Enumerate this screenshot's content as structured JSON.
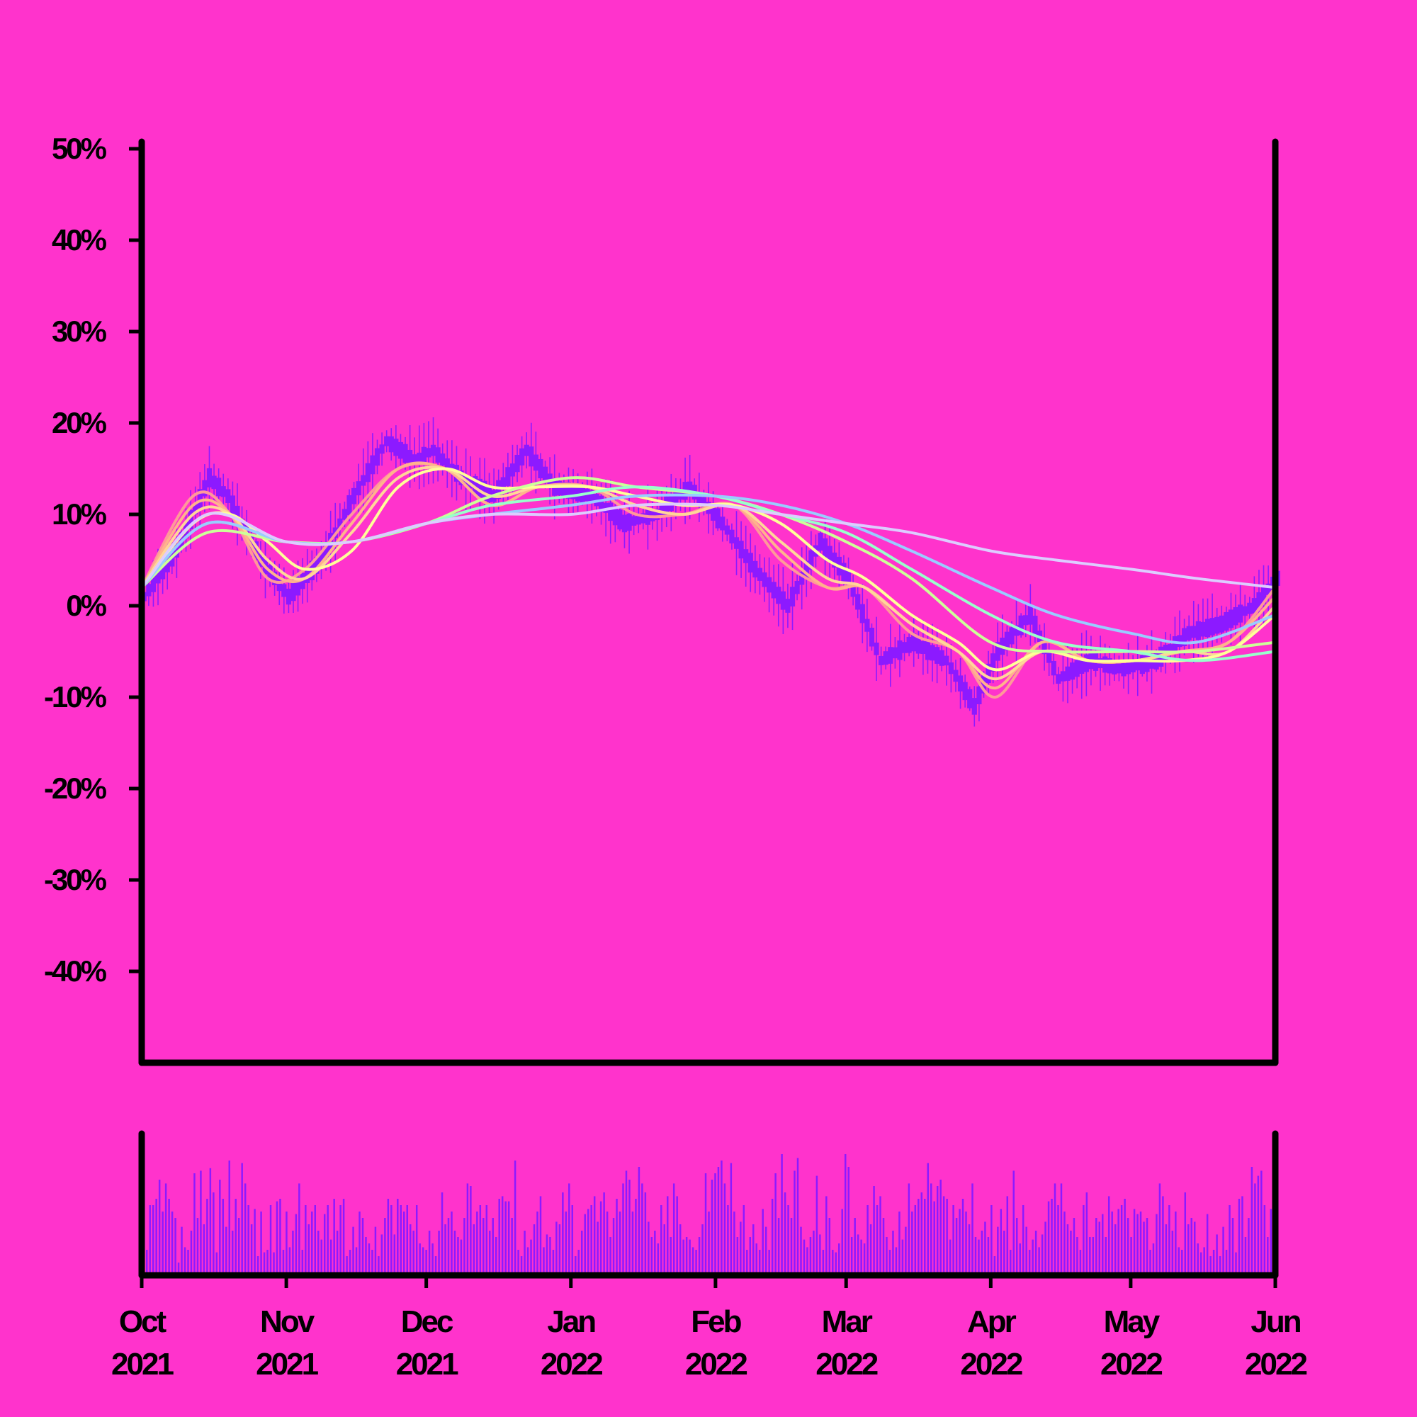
{
  "colors": {
    "background": "#ff33cc",
    "axis": "#000000",
    "candle": "#8c1aff",
    "volume": "#8c1aff"
  },
  "chart_data": [
    {
      "type": "line",
      "title": "",
      "xlabel": "",
      "ylabel": "",
      "x_range": [
        "2021-10-01",
        "2022-06-01"
      ],
      "ylim": [
        -50,
        50
      ],
      "y_ticks": [
        "50%",
        "40%",
        "30%",
        "20%",
        "10%",
        "0%",
        "-10%",
        "-20%",
        "-30%",
        "-40%"
      ],
      "x_ticks": [
        {
          "month": "Oct",
          "year": "2021",
          "date": "2021-10-01"
        },
        {
          "month": "Nov",
          "year": "2021",
          "date": "2021-11-01"
        },
        {
          "month": "Dec",
          "year": "2021",
          "date": "2021-12-01"
        },
        {
          "month": "Jan",
          "year": "2022",
          "date": "2022-01-01"
        },
        {
          "month": "Feb",
          "year": "2022",
          "date": "2022-02-01"
        },
        {
          "month": "Mar",
          "year": "2022",
          "date": "2022-03-01"
        },
        {
          "month": "Apr",
          "year": "2022",
          "date": "2022-04-01"
        },
        {
          "month": "May",
          "year": "2022",
          "date": "2022-05-01"
        },
        {
          "month": "Jun",
          "year": "2022",
          "date": "2022-06-01"
        }
      ],
      "grid": false,
      "legend": "none",
      "price_path": {
        "dates": [
          "2021-10-01",
          "2021-10-08",
          "2021-10-15",
          "2021-10-19",
          "2021-10-26",
          "2021-11-01",
          "2021-11-08",
          "2021-11-15",
          "2021-11-22",
          "2021-11-28",
          "2021-12-02",
          "2021-12-08",
          "2021-12-15",
          "2021-12-22",
          "2021-12-28",
          "2022-01-05",
          "2022-01-12",
          "2022-01-19",
          "2022-01-26",
          "2022-02-02",
          "2022-02-09",
          "2022-02-16",
          "2022-02-23",
          "2022-03-01",
          "2022-03-08",
          "2022-03-15",
          "2022-03-22",
          "2022-03-28",
          "2022-04-02",
          "2022-04-09",
          "2022-04-15",
          "2022-04-22",
          "2022-04-29",
          "2022-05-06",
          "2022-05-13",
          "2022-05-20",
          "2022-05-27",
          "2022-06-01"
        ],
        "values": [
          1,
          6,
          14,
          12,
          5,
          1,
          5,
          12,
          18,
          16,
          17,
          14,
          12,
          17,
          13,
          12,
          9,
          10,
          13,
          9,
          4,
          0,
          7,
          3,
          -6,
          -4,
          -6,
          -11,
          -5,
          -1,
          -8,
          -6,
          -7,
          -6,
          -3,
          -2,
          0,
          3
        ]
      },
      "series": [
        {
          "name": "",
          "color": "#ff9999",
          "x": [
            "2021-10-01",
            "2021-10-12",
            "2021-10-20",
            "2021-10-28",
            "2021-11-05",
            "2021-11-15",
            "2021-11-25",
            "2021-12-05",
            "2021-12-15",
            "2021-12-25",
            "2022-01-05",
            "2022-01-15",
            "2022-01-25",
            "2022-02-05",
            "2022-02-15",
            "2022-02-25",
            "2022-03-05",
            "2022-03-15",
            "2022-03-25",
            "2022-04-02",
            "2022-04-12",
            "2022-04-22",
            "2022-05-02",
            "2022-05-12",
            "2022-05-22",
            "2022-06-01"
          ],
          "y": [
            2,
            12,
            10,
            3,
            4,
            10,
            15,
            15,
            11,
            13,
            13,
            10,
            10,
            11,
            5,
            2,
            2,
            -3,
            -5,
            -10,
            -4,
            -6,
            -6,
            -5,
            -4,
            2
          ]
        },
        {
          "name": "",
          "color": "#ffb38c",
          "x": [
            "2021-10-01",
            "2021-10-12",
            "2021-10-20",
            "2021-10-28",
            "2021-11-05",
            "2021-11-15",
            "2021-11-25",
            "2021-12-05",
            "2021-12-15",
            "2021-12-25",
            "2022-01-05",
            "2022-01-15",
            "2022-01-25",
            "2022-02-05",
            "2022-02-15",
            "2022-02-25",
            "2022-03-05",
            "2022-03-15",
            "2022-03-25",
            "2022-04-02",
            "2022-04-12",
            "2022-04-22",
            "2022-05-02",
            "2022-05-12",
            "2022-05-22",
            "2022-06-01"
          ],
          "y": [
            2,
            11,
            10,
            4,
            3,
            9,
            15,
            15,
            11,
            13,
            13,
            11,
            10,
            11,
            6,
            2,
            2,
            -2,
            -5,
            -9,
            -4,
            -6,
            -6,
            -5,
            -4,
            1
          ]
        },
        {
          "name": "",
          "color": "#ffd699",
          "x": [
            "2021-10-01",
            "2021-10-12",
            "2021-10-20",
            "2021-10-28",
            "2021-11-05",
            "2021-11-15",
            "2021-11-25",
            "2021-12-05",
            "2021-12-15",
            "2021-12-25",
            "2022-01-05",
            "2022-01-15",
            "2022-01-25",
            "2022-02-05",
            "2022-02-15",
            "2022-02-25",
            "2022-03-05",
            "2022-03-15",
            "2022-03-25",
            "2022-04-02",
            "2022-04-12",
            "2022-04-22",
            "2022-05-02",
            "2022-05-12",
            "2022-05-22",
            "2022-06-01"
          ],
          "y": [
            2,
            10,
            10,
            5,
            3,
            8,
            14,
            15,
            12,
            13,
            13,
            11,
            10,
            11,
            7,
            3,
            2,
            -2,
            -5,
            -8,
            -5,
            -6,
            -6,
            -5,
            -5,
            0
          ]
        },
        {
          "name": "",
          "color": "#ffff99",
          "x": [
            "2021-10-01",
            "2021-10-12",
            "2021-10-20",
            "2021-10-28",
            "2021-11-05",
            "2021-11-15",
            "2021-11-25",
            "2021-12-05",
            "2021-12-15",
            "2021-12-25",
            "2022-01-05",
            "2022-01-15",
            "2022-01-25",
            "2022-02-05",
            "2022-02-15",
            "2022-02-25",
            "2022-03-05",
            "2022-03-15",
            "2022-03-25",
            "2022-04-02",
            "2022-04-12",
            "2022-04-22",
            "2022-05-02",
            "2022-05-12",
            "2022-05-22",
            "2022-06-01"
          ],
          "y": [
            2,
            9,
            10,
            7,
            4,
            6,
            13,
            15,
            13,
            13,
            13,
            12,
            11,
            11,
            9,
            5,
            3,
            -1,
            -4,
            -7,
            -5,
            -6,
            -6,
            -6,
            -5,
            -1
          ]
        },
        {
          "name": "",
          "color": "#ccff99",
          "x": [
            "2021-10-01",
            "2021-10-15",
            "2021-11-01",
            "2021-11-15",
            "2021-12-01",
            "2021-12-15",
            "2022-01-01",
            "2022-01-15",
            "2022-02-01",
            "2022-02-15",
            "2022-03-01",
            "2022-03-15",
            "2022-04-01",
            "2022-04-15",
            "2022-05-01",
            "2022-05-15",
            "2022-06-01"
          ],
          "y": [
            2,
            8,
            7,
            7,
            9,
            12,
            14,
            13,
            12,
            10,
            7,
            3,
            -4,
            -5,
            -5,
            -5,
            -4
          ]
        },
        {
          "name": "",
          "color": "#99ffcc",
          "x": [
            "2021-10-01",
            "2021-10-15",
            "2021-11-01",
            "2021-11-15",
            "2021-12-01",
            "2021-12-15",
            "2022-01-01",
            "2022-01-15",
            "2022-02-01",
            "2022-02-15",
            "2022-03-01",
            "2022-03-15",
            "2022-04-01",
            "2022-04-15",
            "2022-05-01",
            "2022-05-15",
            "2022-06-01"
          ],
          "y": [
            2,
            9,
            7,
            7,
            9,
            11,
            12,
            13,
            12,
            10,
            8,
            4,
            -1,
            -4,
            -5,
            -6,
            -5
          ]
        },
        {
          "name": "",
          "color": "#99ccff",
          "x": [
            "2021-10-01",
            "2021-10-15",
            "2021-11-01",
            "2021-11-15",
            "2021-12-01",
            "2021-12-15",
            "2022-01-01",
            "2022-01-15",
            "2022-02-01",
            "2022-02-15",
            "2022-03-01",
            "2022-03-15",
            "2022-04-01",
            "2022-04-15",
            "2022-05-01",
            "2022-05-15",
            "2022-06-01"
          ],
          "y": [
            2,
            9,
            7,
            7,
            9,
            10,
            11,
            12,
            12,
            11,
            9,
            6,
            2,
            -1,
            -3,
            -4,
            -1
          ]
        },
        {
          "name": "",
          "color": "#ddccff",
          "x": [
            "2021-10-01",
            "2021-10-15",
            "2021-11-01",
            "2021-11-15",
            "2021-12-01",
            "2021-12-15",
            "2022-01-01",
            "2022-01-15",
            "2022-02-01",
            "2022-02-15",
            "2022-03-01",
            "2022-03-15",
            "2022-04-01",
            "2022-04-15",
            "2022-05-01",
            "2022-05-15",
            "2022-06-01"
          ],
          "y": [
            2,
            10,
            7,
            7,
            9,
            10,
            10,
            11,
            11,
            10,
            9,
            8,
            6,
            5,
            4,
            3,
            2
          ]
        }
      ]
    },
    {
      "type": "bar",
      "title": "",
      "xlabel": "",
      "ylabel": "",
      "x_range": [
        "2021-10-01",
        "2022-06-01"
      ],
      "note_values": "relative daily volume, 0-1 scale",
      "values": [
        0.2,
        0.55,
        0.55,
        0.6,
        0.75,
        0.5,
        0.72,
        0.6,
        0.5,
        0.45,
        0.1,
        0.38,
        0.22,
        0.2,
        0.35,
        0.8,
        0.45,
        0.82,
        0.4,
        0.6,
        0.84,
        0.65,
        0.18,
        0.75,
        0.6,
        0.38,
        0.9,
        0.35,
        0.6,
        0.45,
        0.88,
        0.72,
        0.55,
        0.4,
        0.52,
        0.15,
        0.5,
        0.18,
        0.2,
        0.55,
        0.18,
        0.58,
        0.6,
        0.2,
        0.5,
        0.22,
        0.35,
        0.48,
        0.72,
        0.2,
        0.55,
        0.4,
        0.5,
        0.55,
        0.35,
        0.28,
        0.48,
        0.55,
        0.28,
        0.6,
        0.35,
        0.55,
        0.6,
        0.15,
        0.2,
        0.38,
        0.22,
        0.5,
        0.45,
        0.3,
        0.25,
        0.2,
        0.38,
        0.15,
        0.32,
        0.45,
        0.6,
        0.55,
        0.32,
        0.6,
        0.55,
        0.5,
        0.55,
        0.4,
        0.35,
        0.55,
        0.25,
        0.22,
        0.2,
        0.35,
        0.25,
        0.15,
        0.35,
        0.65,
        0.4,
        0.45,
        0.5,
        0.35,
        0.3,
        0.28,
        0.45,
        0.72,
        0.7,
        0.4,
        0.5,
        0.55,
        0.45,
        0.55,
        0.35,
        0.45,
        0.3,
        0.6,
        0.62,
        0.58,
        0.58,
        0.45,
        0.9,
        0.2,
        0.15,
        0.35,
        0.22,
        0.28,
        0.4,
        0.5,
        0.62,
        0.22,
        0.32,
        0.3,
        0.2,
        0.42,
        0.4,
        0.65,
        0.5,
        0.72,
        0.55,
        0.15,
        0.2,
        0.35,
        0.48,
        0.52,
        0.55,
        0.62,
        0.42,
        0.58,
        0.65,
        0.5,
        0.3,
        0.45,
        0.6,
        0.5,
        0.72,
        0.82,
        0.75,
        0.5,
        0.6,
        0.85,
        0.72,
        0.65,
        0.42,
        0.3,
        0.35,
        0.25,
        0.55,
        0.4,
        0.62,
        0.3,
        0.72,
        0.62,
        0.4,
        0.28,
        0.3,
        0.28,
        0.22,
        0.2,
        0.3,
        0.4,
        0.8,
        0.5,
        0.75,
        0.8,
        0.85,
        0.9,
        0.72,
        0.55,
        0.88,
        0.5,
        0.3,
        0.42,
        0.55,
        0.2,
        0.3,
        0.4,
        0.25,
        0.2,
        0.52,
        0.38,
        0.2,
        0.6,
        0.8,
        0.45,
        0.95,
        0.65,
        0.55,
        0.45,
        0.82,
        0.92,
        0.38,
        0.28,
        0.22,
        0.3,
        0.35,
        0.78,
        0.32,
        0.2,
        0.62,
        0.45,
        0.2,
        0.18,
        0.25,
        0.52,
        0.95,
        0.85,
        0.3,
        0.45,
        0.32,
        0.28,
        0.25,
        0.55,
        0.4,
        0.7,
        0.55,
        0.62,
        0.45,
        0.3,
        0.2,
        0.35,
        0.22,
        0.5,
        0.28,
        0.38,
        0.72,
        0.5,
        0.55,
        0.6,
        0.65,
        0.6,
        0.88,
        0.72,
        0.58,
        0.7,
        0.75,
        0.62,
        0.6,
        0.28,
        0.55,
        0.45,
        0.52,
        0.6,
        0.5,
        0.4,
        0.72,
        0.3,
        0.28,
        0.35,
        0.42,
        0.3,
        0.55,
        0.15,
        0.38,
        0.52,
        0.35,
        0.62,
        0.2,
        0.82,
        0.45,
        0.25,
        0.55,
        0.38,
        0.2,
        0.28,
        0.35,
        0.22,
        0.32,
        0.42,
        0.58,
        0.6,
        0.72,
        0.55,
        0.72,
        0.5,
        0.4,
        0.35,
        0.45,
        0.3,
        0.2,
        0.55,
        0.65,
        0.3,
        0.3,
        0.45,
        0.42,
        0.48,
        0.3,
        0.62,
        0.5,
        0.4,
        0.52,
        0.55,
        0.6,
        0.45,
        0.3,
        0.52,
        0.48,
        0.5,
        0.42,
        0.45,
        0.2,
        0.25,
        0.48,
        0.72,
        0.62,
        0.4,
        0.55,
        0.35,
        0.5,
        0.22,
        0.2,
        0.65,
        0.4,
        0.45,
        0.42,
        0.25,
        0.18,
        0.22,
        0.48,
        0.15,
        0.2,
        0.32,
        0.15,
        0.38,
        0.2,
        0.55,
        0.45,
        0.18,
        0.6,
        0.62,
        0.3,
        0.45,
        0.85,
        0.72,
        0.78,
        0.82,
        0.55,
        0.3,
        0.52,
        0.2,
        0.72
      ]
    }
  ]
}
